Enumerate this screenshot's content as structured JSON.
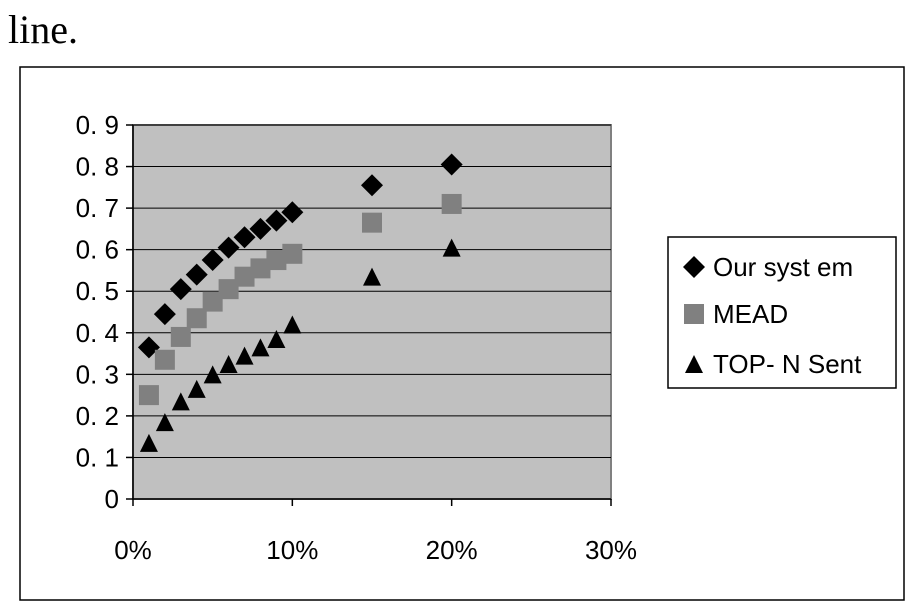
{
  "page": {
    "top_text": "line."
  },
  "chart_data": {
    "type": "scatter",
    "title": "",
    "xlabel": "",
    "ylabel": "",
    "xlim": [
      0,
      30
    ],
    "ylim": [
      0,
      0.9
    ],
    "x_ticks": [
      0,
      10,
      20,
      30
    ],
    "x_tick_labels": [
      "0%",
      "10%",
      "20%",
      "30%"
    ],
    "y_ticks": [
      0,
      0.1,
      0.2,
      0.3,
      0.4,
      0.5,
      0.6,
      0.7,
      0.8,
      0.9
    ],
    "y_tick_labels": [
      "0",
      "0. 1",
      "0. 2",
      "0. 3",
      "0. 4",
      "0. 5",
      "0. 6",
      "0. 7",
      "0. 8",
      "0. 9"
    ],
    "grid": "horizontal",
    "legend_position": "right",
    "plot_background": "#c0c0c0",
    "series": [
      {
        "name": "Our  syst em",
        "marker": "diamond",
        "color": "#000000",
        "x": [
          1,
          2,
          3,
          4,
          5,
          6,
          7,
          8,
          9,
          10,
          15,
          20
        ],
        "y": [
          0.365,
          0.445,
          0.505,
          0.54,
          0.575,
          0.605,
          0.63,
          0.65,
          0.67,
          0.69,
          0.755,
          0.805
        ]
      },
      {
        "name": "MEAD",
        "marker": "square",
        "color": "#808080",
        "x": [
          1,
          2,
          3,
          4,
          5,
          6,
          7,
          8,
          9,
          10,
          15,
          20
        ],
        "y": [
          0.25,
          0.335,
          0.39,
          0.435,
          0.475,
          0.505,
          0.535,
          0.555,
          0.575,
          0.59,
          0.665,
          0.71
        ]
      },
      {
        "name": "TOP- N Sent",
        "marker": "triangle",
        "color": "#000000",
        "x": [
          1,
          2,
          3,
          4,
          5,
          6,
          7,
          8,
          9,
          10,
          15,
          20
        ],
        "y": [
          0.135,
          0.185,
          0.235,
          0.265,
          0.3,
          0.325,
          0.345,
          0.365,
          0.385,
          0.42,
          0.535,
          0.605
        ]
      }
    ]
  }
}
